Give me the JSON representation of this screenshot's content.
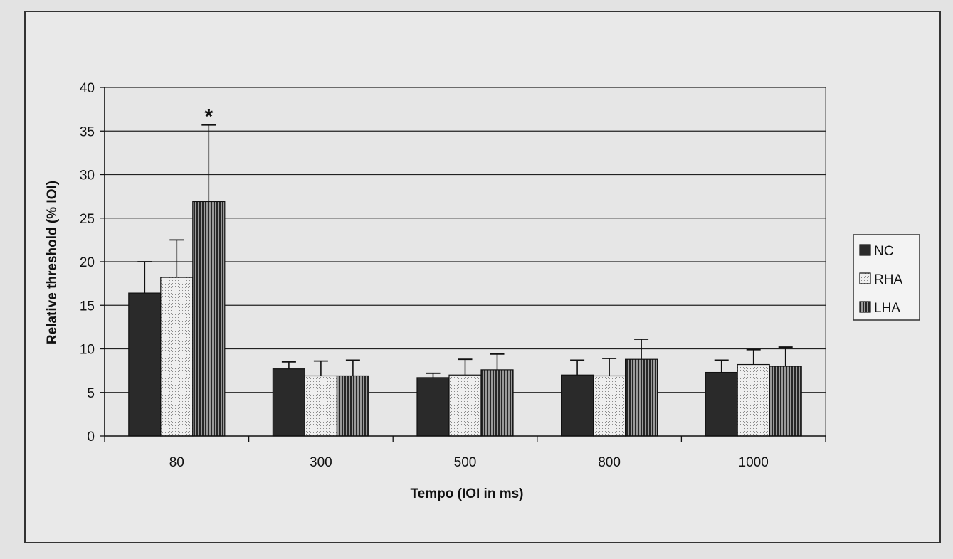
{
  "chart_data": {
    "type": "bar",
    "title": "",
    "xlabel": "Tempo (IOI in ms)",
    "ylabel": "Relative threshold (% IOI)",
    "ylim": [
      0,
      40
    ],
    "yticks": [
      0,
      5,
      10,
      15,
      20,
      25,
      30,
      35,
      40
    ],
    "grid": true,
    "legend_position": "right",
    "categories": [
      "80",
      "300",
      "500",
      "800",
      "1000"
    ],
    "series": [
      {
        "name": "NC",
        "values": [
          16.4,
          7.7,
          6.7,
          7.0,
          7.3
        ],
        "errors": [
          3.6,
          0.8,
          0.5,
          1.7,
          1.4
        ],
        "fill": "solid-dark"
      },
      {
        "name": "RHA",
        "values": [
          18.2,
          6.9,
          7.0,
          6.9,
          8.2
        ],
        "errors": [
          4.3,
          1.7,
          1.8,
          2.0,
          1.7
        ],
        "fill": "dotted-light"
      },
      {
        "name": "LHA",
        "values": [
          26.9,
          6.9,
          7.6,
          8.8,
          8.0
        ],
        "errors": [
          8.8,
          1.8,
          1.8,
          2.3,
          2.2
        ],
        "fill": "vertical-stripes"
      }
    ],
    "annotations": [
      {
        "text": "*",
        "category": "80",
        "series": "LHA"
      }
    ]
  },
  "colors": {
    "nc_fill": "#2a2a2a",
    "rha_fill": "#eeeeee",
    "lha_fill": "#555555",
    "plot_bg": "#e6e6e6",
    "grid": "#222222"
  }
}
